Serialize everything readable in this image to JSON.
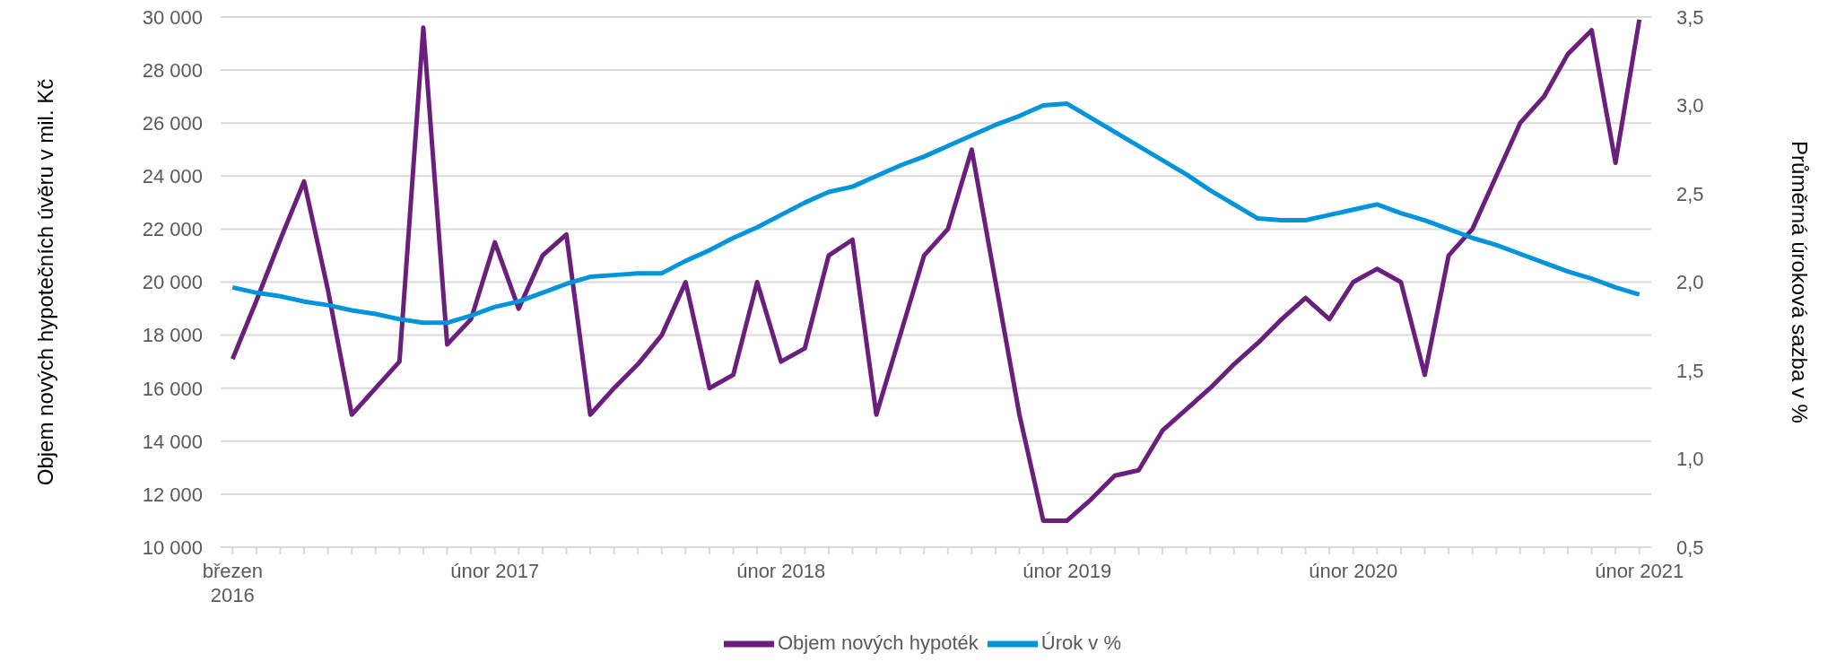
{
  "chart_data": {
    "type": "line",
    "ylabel": "Objem nových hypotečních úvěru v mil. Kč",
    "y2label": "Průměrná úroková sazba v %",
    "categories": [
      "březen\n2016",
      null,
      null,
      null,
      null,
      null,
      null,
      null,
      null,
      null,
      null,
      "únor 2017",
      null,
      null,
      null,
      null,
      null,
      null,
      null,
      null,
      null,
      null,
      null,
      "únor 2018",
      null,
      null,
      null,
      null,
      null,
      null,
      null,
      null,
      null,
      null,
      null,
      "únor 2019",
      null,
      null,
      null,
      null,
      null,
      null,
      null,
      null,
      null,
      null,
      null,
      "únor 2020",
      null,
      null,
      null,
      null,
      null,
      null,
      null,
      null,
      null,
      null,
      null,
      "únor 2021"
    ],
    "series": [
      {
        "name": "Objem nových hypoték",
        "color": "#6b1f7c",
        "values": [
          17100,
          19300,
          21600,
          23800,
          19700,
          15000,
          16000,
          17000,
          29600,
          17650,
          18600,
          21500,
          19000,
          21000,
          21800,
          15000,
          16000,
          16900,
          18000,
          20000,
          16000,
          16500,
          20000,
          17000,
          17500,
          21000,
          21600,
          15000,
          18000,
          21000,
          22000,
          25000,
          20000,
          15000,
          11000,
          11000,
          11800,
          12700,
          12900,
          14400,
          15200,
          16000,
          16900,
          17700,
          18600,
          19400,
          18600,
          20000,
          20500,
          20000,
          16500,
          21000,
          22000,
          24000,
          26000,
          27000,
          28600,
          29500,
          24500,
          29900
        ]
      },
      {
        "name": "Úrok v %",
        "color": "#0095db",
        "axis": "y2",
        "values": [
          1.97,
          1.94,
          1.92,
          1.89,
          1.87,
          1.84,
          1.82,
          1.79,
          1.77,
          1.77,
          1.81,
          1.86,
          1.89,
          1.94,
          1.99,
          2.03,
          2.04,
          2.05,
          2.05,
          2.12,
          2.18,
          2.25,
          2.31,
          2.38,
          2.45,
          2.51,
          2.54,
          2.6,
          2.66,
          2.71,
          2.77,
          2.83,
          2.89,
          2.94,
          3.0,
          3.01,
          2.93,
          2.85,
          2.77,
          2.69,
          2.61,
          2.52,
          2.44,
          2.36,
          2.35,
          2.35,
          2.38,
          2.41,
          2.44,
          2.39,
          2.35,
          2.3,
          2.25,
          2.21,
          2.16,
          2.11,
          2.06,
          2.02,
          1.97,
          1.93
        ]
      }
    ],
    "ylim": [
      10000,
      30000
    ],
    "yticks": [
      {
        "value": 10000,
        "label": "10 000"
      },
      {
        "value": 12000,
        "label": "12 000"
      },
      {
        "value": 14000,
        "label": "14 000"
      },
      {
        "value": 16000,
        "label": "16 000"
      },
      {
        "value": 18000,
        "label": "18 000"
      },
      {
        "value": 20000,
        "label": "20 000"
      },
      {
        "value": 22000,
        "label": "22 000"
      },
      {
        "value": 24000,
        "label": "24 000"
      },
      {
        "value": 26000,
        "label": "26 000"
      },
      {
        "value": 28000,
        "label": "28 000"
      },
      {
        "value": 30000,
        "label": "30 000"
      }
    ],
    "y2lim": [
      0.5,
      3.5
    ],
    "y2ticks": [
      {
        "value": 0.5,
        "label": "0,5"
      },
      {
        "value": 1,
        "label": "1,0"
      },
      {
        "value": 1.5,
        "label": "1,5"
      },
      {
        "value": 2,
        "label": "2,0"
      },
      {
        "value": 2.5,
        "label": "2,5"
      },
      {
        "value": 3,
        "label": "3,0"
      },
      {
        "value": 3.5,
        "label": "3,5"
      }
    ],
    "grid": "y",
    "legend": "bottom",
    "marker": "none",
    "line_style": "solid"
  }
}
